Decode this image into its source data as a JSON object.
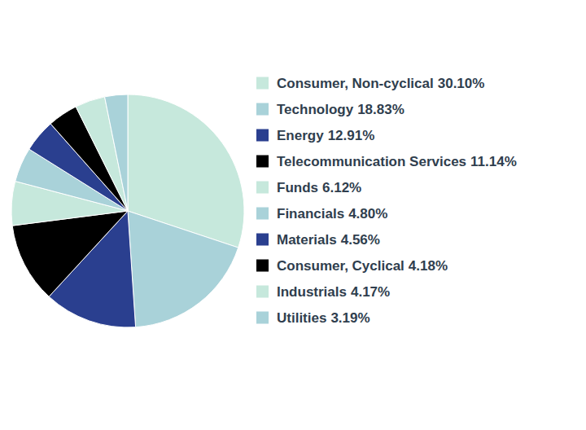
{
  "chart_data": {
    "type": "pie",
    "categories": [
      "Consumer, Non-cyclical",
      "Technology",
      "Energy",
      "Telecommunication Services",
      "Funds",
      "Financials",
      "Materials",
      "Consumer, Cyclical",
      "Industrials",
      "Utilities"
    ],
    "values": [
      30.1,
      18.83,
      12.91,
      11.14,
      6.12,
      4.8,
      4.56,
      4.18,
      4.17,
      3.19
    ],
    "value_labels": [
      "30.10%",
      "18.83%",
      "12.91%",
      "11.14%",
      "6.12%",
      "4.80%",
      "4.56%",
      "4.18%",
      "4.17%",
      "3.19%"
    ],
    "colors": [
      "#c6e8dc",
      "#a9d2d9",
      "#2a3f8f",
      "#000000",
      "#c6e8dc",
      "#a9d2d9",
      "#2a3f8f",
      "#000000",
      "#c6e8dc",
      "#a9d2d9"
    ]
  }
}
